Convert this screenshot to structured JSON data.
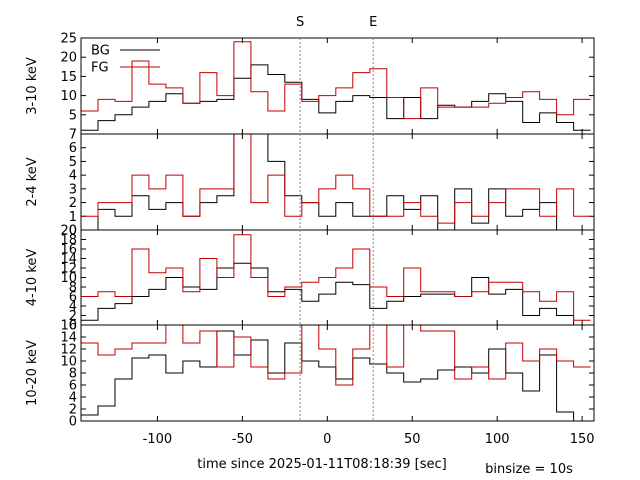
{
  "chart_data": {
    "type": "line",
    "style": "step",
    "xlabel": "time since 2025-01-11T08:18:39 [sec]",
    "binsize_label": "binsize = 10s",
    "xlim": [
      -145,
      157
    ],
    "xticks": [
      -100,
      -50,
      0,
      50,
      100,
      150
    ],
    "xtick_labels": [
      "-100",
      "-50",
      "0",
      "50",
      "100",
      "150"
    ],
    "markers": [
      {
        "label": "S",
        "x": -16
      },
      {
        "label": "E",
        "x": 27
      }
    ],
    "colors": {
      "BG": "#000000",
      "FG": "#c00000"
    },
    "legend": {
      "position": "top-left",
      "entries": [
        "BG",
        "FG"
      ]
    },
    "bin_edges": [
      -145,
      -135,
      -125,
      -115,
      -105,
      -95,
      -85,
      -75,
      -65,
      -55,
      -45,
      -35,
      -25,
      -15,
      -5,
      5,
      15,
      25,
      35,
      45,
      55,
      65,
      75,
      85,
      95,
      105,
      115,
      125,
      135,
      145,
      155
    ],
    "panels": [
      {
        "ylabel": "3-10 keV",
        "ylim": [
          0,
          25
        ],
        "yticks": [
          0,
          5,
          10,
          15,
          20,
          25
        ],
        "ytick_labels": [
          "",
          "5",
          "10",
          "15",
          "20",
          "25"
        ],
        "series": [
          {
            "name": "BG",
            "values": [
              1,
              3.5,
              5,
              7,
              8.5,
              10.5,
              8,
              8.5,
              9,
              14.5,
              18,
              15.5,
              13.5,
              9,
              5.5,
              8.5,
              10,
              9.5,
              4,
              9.5,
              4,
              7.5,
              7,
              8.5,
              10.5,
              8.5,
              3,
              5.5,
              3,
              1
            ]
          },
          {
            "name": "FG",
            "values": [
              6,
              9,
              8.5,
              19,
              13,
              12,
              8,
              16,
              10,
              24,
              11,
              6,
              13,
              8.5,
              10,
              12,
              16,
              17,
              9.5,
              4,
              12,
              7,
              7,
              7,
              8,
              9.5,
              11,
              9,
              5,
              9
            ]
          }
        ]
      },
      {
        "ylabel": "2-4 keV",
        "ylim": [
          0,
          7
        ],
        "yticks": [
          0,
          1,
          2,
          3,
          4,
          5,
          6,
          7
        ],
        "ytick_labels": [
          "0",
          "1",
          "2",
          "3",
          "4",
          "5",
          "6",
          "7"
        ],
        "series": [
          {
            "name": "BG",
            "values": [
              0,
              1.5,
              1,
              2.5,
              1.5,
              2,
              1,
              2,
              2.5,
              7,
              7,
              5,
              2.5,
              2,
              1,
              2,
              1,
              1,
              2.5,
              1.5,
              2.5,
              0,
              3,
              0.5,
              3,
              1,
              1.5,
              2,
              0,
              0
            ]
          },
          {
            "name": "FG",
            "values": [
              1,
              2,
              2,
              4,
              3,
              4,
              1,
              3,
              3,
              7,
              2,
              4,
              1,
              2,
              3,
              4,
              3,
              1,
              1,
              2,
              1,
              0.5,
              2,
              1,
              2,
              3,
              3,
              1,
              3,
              1
            ]
          }
        ]
      },
      {
        "ylabel": "4-10 keV",
        "ylim": [
          0,
          20
        ],
        "yticks": [
          0,
          2,
          4,
          6,
          8,
          10,
          12,
          14,
          16,
          18,
          20
        ],
        "ytick_labels": [
          "0",
          "2",
          "4",
          "6",
          "8",
          "10",
          "12",
          "14",
          "16",
          "18",
          "20"
        ],
        "series": [
          {
            "name": "BG",
            "values": [
              1,
              3.5,
              4.5,
              6,
              7.5,
              10,
              8,
              7.5,
              12,
              13,
              12,
              7,
              7.5,
              5,
              6.5,
              9,
              8.5,
              3.5,
              5,
              6,
              6.5,
              6.5,
              6,
              10,
              6.5,
              7.5,
              2,
              3.5,
              2,
              0
            ]
          },
          {
            "name": "FG",
            "values": [
              6,
              7,
              6,
              16,
              11,
              12,
              7,
              14,
              10,
              19,
              10,
              6,
              8,
              9,
              10,
              12,
              16,
              8,
              6,
              12,
              7,
              7,
              6,
              7,
              9,
              9,
              7,
              5,
              7,
              1
            ]
          }
        ]
      },
      {
        "ylabel": "10-20 keV",
        "ylim": [
          0,
          16
        ],
        "yticks": [
          0,
          2,
          4,
          6,
          8,
          10,
          12,
          14,
          16
        ],
        "ytick_labels": [
          "0",
          "2",
          "4",
          "6",
          "8",
          "10",
          "12",
          "14",
          "16"
        ],
        "series": [
          {
            "name": "BG",
            "values": [
              1,
              2.5,
              7,
              10.5,
              11,
              8,
              10,
              9,
              15,
              11,
              13.5,
              8,
              13,
              10,
              9,
              7,
              10.5,
              9.5,
              8,
              6.5,
              7,
              8.5,
              9,
              8,
              12,
              8,
              5,
              11,
              1.5,
              0
            ]
          },
          {
            "name": "FG",
            "values": [
              13,
              11,
              12,
              13,
              13,
              16,
              13,
              15,
              9,
              14,
              9,
              7,
              8,
              17,
              12,
              6,
              12,
              18,
              9,
              17,
              15,
              15,
              7,
              9,
              7,
              13,
              10,
              12,
              10,
              9
            ]
          }
        ]
      }
    ]
  }
}
